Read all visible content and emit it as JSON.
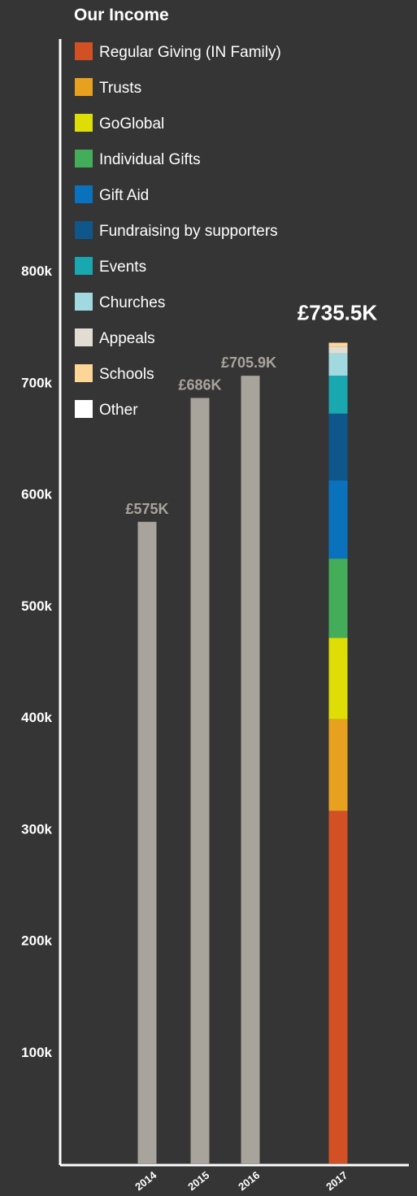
{
  "chart_data": {
    "type": "bar",
    "title": "Our Income",
    "categories": [
      "2014",
      "2015",
      "2016",
      "2017"
    ],
    "totals": [
      575,
      686,
      705.9,
      735.5
    ],
    "total_labels": [
      "£575K",
      "£686K",
      "£705.9K",
      "£735.5K"
    ],
    "plain_bar_color": "#a8a49c",
    "y_ticks": [
      100,
      200,
      300,
      400,
      500,
      600,
      700,
      800
    ],
    "y_tick_labels": [
      "100k",
      "200k",
      "300k",
      "400k",
      "500k",
      "600k",
      "700k",
      "800k"
    ],
    "ylim": [
      0,
      850
    ],
    "legend_position": "top-left",
    "stack_category": "2017",
    "series": [
      {
        "name": "Regular Giving (IN Family)",
        "color": "#d35024",
        "value": 316
      },
      {
        "name": "Trusts",
        "color": "#e8a11e",
        "value": 82
      },
      {
        "name": "GoGlobal",
        "color": "#dedd05",
        "value": 73
      },
      {
        "name": "Individual Gifts",
        "color": "#44ad59",
        "value": 71
      },
      {
        "name": "Gift Aid",
        "color": "#0a72bd",
        "value": 70
      },
      {
        "name": "Fundraising by supporters",
        "color": "#0f578a",
        "value": 60
      },
      {
        "name": "Events",
        "color": "#19a7b0",
        "value": 34
      },
      {
        "name": "Churches",
        "color": "#a2d9e0",
        "value": 20
      },
      {
        "name": "Appeals",
        "color": "#e2ddd2",
        "value": 6
      },
      {
        "name": "Schools",
        "color": "#fcd597",
        "value": 3.5
      },
      {
        "name": "Other",
        "color": "#ffffff",
        "value": 0
      }
    ]
  }
}
